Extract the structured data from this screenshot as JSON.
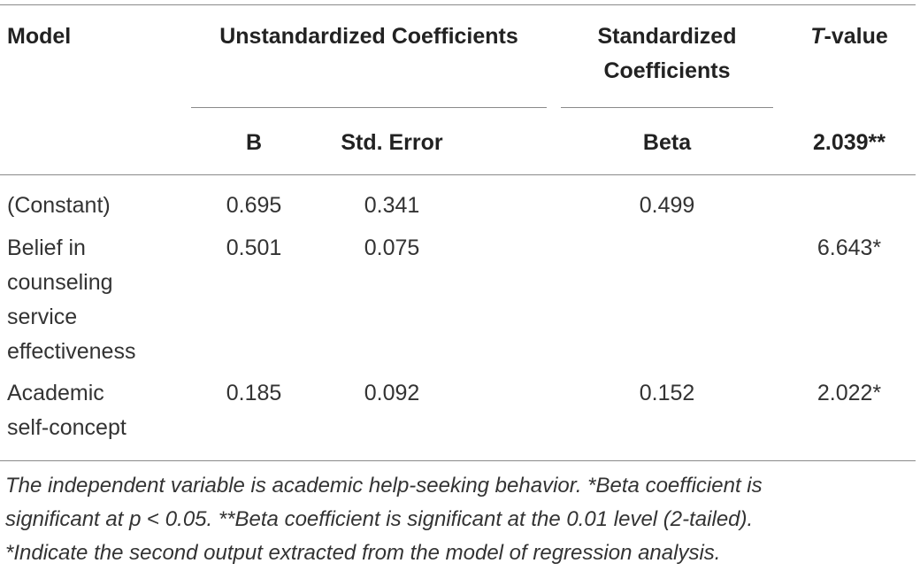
{
  "table": {
    "headers": {
      "model": "Model",
      "unstandardized": "Unstandardized Coefficients",
      "standardized_line1": "Standardized",
      "standardized_line2": "Coefficients",
      "tvalue_italic": "T",
      "tvalue_rest": "-value",
      "b": "B",
      "std_error": "Std. Error",
      "beta": "Beta",
      "tvalue_sub": "2.039**"
    },
    "rows": [
      {
        "label_lines": [
          "(Constant)"
        ],
        "b": "0.695",
        "std_error": "0.341",
        "beta": "0.499",
        "tvalue": ""
      },
      {
        "label_lines": [
          "Belief in",
          "counseling",
          "service",
          "effectiveness"
        ],
        "b": "0.501",
        "std_error": "0.075",
        "beta": "",
        "tvalue": "6.643*"
      },
      {
        "label_lines": [
          "Academic",
          "self-concept"
        ],
        "b": "0.185",
        "std_error": "0.092",
        "beta": "0.152",
        "tvalue": "2.022*"
      }
    ],
    "footnote": {
      "line1_pre": "The independent variable is academic help-seeking behavior. *Beta coefficient is",
      "line2_pre": "significant at ",
      "line2_p": "p",
      "line2_lt": " < ",
      "line2_post": "0.05. **Beta coefficient is significant at the 0.01 level (2-tailed).",
      "line3": "*Indicate the second output extracted from the model of regression analysis."
    }
  }
}
